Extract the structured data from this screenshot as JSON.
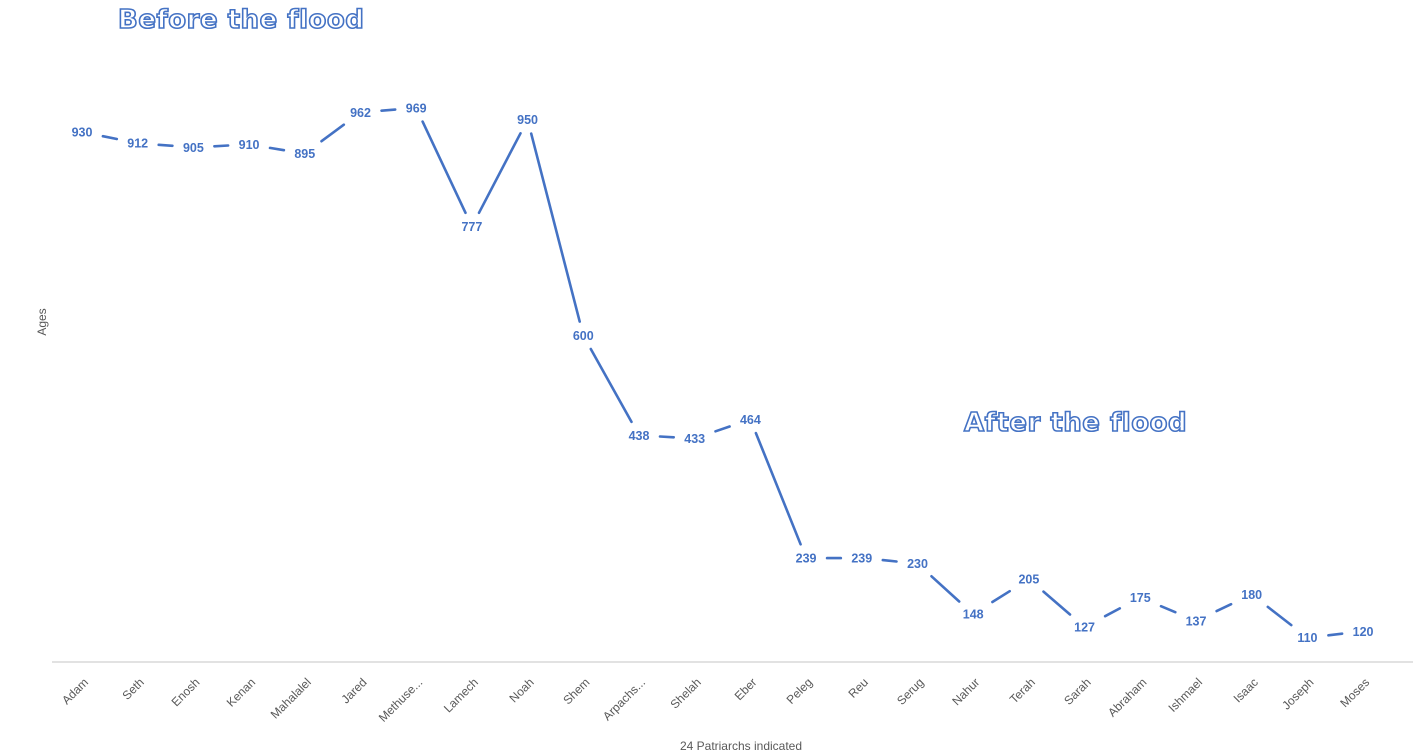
{
  "chart_data": {
    "type": "line",
    "title": "",
    "xlabel": "24 Patriarchs  indicated",
    "ylabel": "Ages",
    "ylim": [
      0,
      1000
    ],
    "grid": false,
    "legend": "none",
    "categories": [
      "Adam",
      "Seth",
      "Enosh",
      "Kenan",
      "Mahalalel",
      "Jared",
      "Methuse...",
      "Lamech",
      "Noah",
      "Shem",
      "Arpachs...",
      "Shelah",
      "Eber",
      "Peleg",
      "Reu",
      "Serug",
      "Nahur",
      "Terah",
      "Sarah",
      "Abraham",
      "Ishmael",
      "Isaac",
      "Joseph",
      "Moses"
    ],
    "series": [
      {
        "values": [
          930,
          912,
          905,
          910,
          895,
          962,
          969,
          777,
          950,
          600,
          438,
          433,
          464,
          239,
          239,
          230,
          148,
          205,
          127,
          175,
          137,
          180,
          110,
          120
        ],
        "data_labels": [
          "930",
          "912",
          "905",
          "910",
          "895",
          "962",
          "969",
          "777",
          "950",
          "600",
          "438",
          "433",
          "464",
          "239",
          "239",
          "230",
          "148",
          "205",
          "127",
          "175",
          "137",
          "180",
          "110",
          "120"
        ]
      }
    ],
    "annotations": [
      "Before the flood",
      "After the flood"
    ],
    "color": "#4472c4"
  }
}
